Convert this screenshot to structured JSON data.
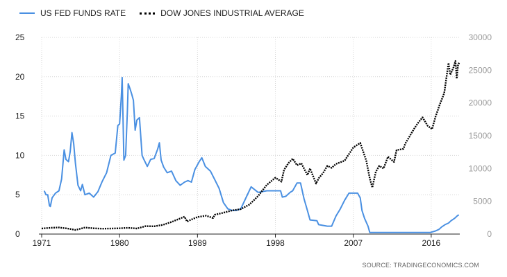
{
  "legend": {
    "fed": "US FED FUNDS RATE",
    "dow": "DOW JONES INDUSTRIAL AVERAGE"
  },
  "source": "SOURCE:  TRADINGECONOMICS.COM",
  "colors": {
    "fed": "#4a90e2",
    "dow": "#000000",
    "grid": "#d6d6d6",
    "axis_left": "#222222",
    "axis_right": "#9a9a9a"
  },
  "chart_data": {
    "type": "line",
    "xlim": [
      1971,
      2019.3
    ],
    "x_ticks": [
      1971,
      1980,
      1989,
      1998,
      2007,
      2016
    ],
    "y_left": {
      "lim": [
        0,
        25
      ],
      "ticks": [
        0,
        5,
        10,
        15,
        20,
        25
      ]
    },
    "y_right": {
      "lim": [
        0,
        30000
      ],
      "ticks": [
        0,
        5000,
        10000,
        15000,
        20000,
        25000,
        30000
      ]
    },
    "grid": true,
    "legend_position": "top-left",
    "series": [
      {
        "name": "US FED FUNDS RATE",
        "axis": "left",
        "style": "solid",
        "points": [
          [
            1971.3,
            5.5
          ],
          [
            1971.5,
            5.0
          ],
          [
            1971.7,
            5.0
          ],
          [
            1971.9,
            3.6
          ],
          [
            1972.0,
            3.5
          ],
          [
            1972.2,
            4.6
          ],
          [
            1972.6,
            5.2
          ],
          [
            1973.0,
            5.5
          ],
          [
            1973.3,
            7.0
          ],
          [
            1973.6,
            10.7
          ],
          [
            1973.8,
            9.5
          ],
          [
            1974.1,
            9.2
          ],
          [
            1974.3,
            10.5
          ],
          [
            1974.5,
            12.9
          ],
          [
            1974.7,
            11.5
          ],
          [
            1974.9,
            9.0
          ],
          [
            1975.2,
            6.2
          ],
          [
            1975.5,
            5.5
          ],
          [
            1975.7,
            6.3
          ],
          [
            1976.0,
            5.0
          ],
          [
            1976.5,
            5.2
          ],
          [
            1977.0,
            4.7
          ],
          [
            1977.5,
            5.4
          ],
          [
            1978.0,
            6.7
          ],
          [
            1978.5,
            7.8
          ],
          [
            1979.0,
            10.0
          ],
          [
            1979.5,
            10.3
          ],
          [
            1979.8,
            13.8
          ],
          [
            1980.0,
            14.0
          ],
          [
            1980.2,
            17.5
          ],
          [
            1980.3,
            19.9
          ],
          [
            1980.5,
            9.4
          ],
          [
            1980.7,
            10.0
          ],
          [
            1980.9,
            15.6
          ],
          [
            1981.0,
            19.1
          ],
          [
            1981.2,
            18.5
          ],
          [
            1981.4,
            17.8
          ],
          [
            1981.6,
            17.0
          ],
          [
            1981.8,
            13.2
          ],
          [
            1982.0,
            14.5
          ],
          [
            1982.3,
            14.8
          ],
          [
            1982.6,
            10.0
          ],
          [
            1982.8,
            9.5
          ],
          [
            1983.2,
            8.6
          ],
          [
            1983.6,
            9.5
          ],
          [
            1984.0,
            9.6
          ],
          [
            1984.4,
            10.8
          ],
          [
            1984.6,
            11.6
          ],
          [
            1984.8,
            9.4
          ],
          [
            1985.1,
            8.5
          ],
          [
            1985.5,
            7.8
          ],
          [
            1986.0,
            8.0
          ],
          [
            1986.5,
            6.8
          ],
          [
            1987.0,
            6.2
          ],
          [
            1987.5,
            6.6
          ],
          [
            1987.9,
            6.8
          ],
          [
            1988.3,
            6.6
          ],
          [
            1988.7,
            8.2
          ],
          [
            1989.2,
            9.2
          ],
          [
            1989.5,
            9.7
          ],
          [
            1989.9,
            8.6
          ],
          [
            1990.5,
            8.0
          ],
          [
            1991.0,
            6.9
          ],
          [
            1991.5,
            5.8
          ],
          [
            1992.0,
            4.0
          ],
          [
            1992.5,
            3.2
          ],
          [
            1993.0,
            3.0
          ],
          [
            1993.5,
            3.0
          ],
          [
            1994.0,
            3.2
          ],
          [
            1994.6,
            4.6
          ],
          [
            1995.2,
            6.0
          ],
          [
            1996.0,
            5.3
          ],
          [
            1997.0,
            5.5
          ],
          [
            1998.0,
            5.5
          ],
          [
            1998.6,
            5.5
          ],
          [
            1998.8,
            4.7
          ],
          [
            1999.2,
            4.8
          ],
          [
            1999.7,
            5.3
          ],
          [
            2000.0,
            5.5
          ],
          [
            2000.5,
            6.5
          ],
          [
            2000.9,
            6.5
          ],
          [
            2001.3,
            4.5
          ],
          [
            2001.7,
            3.0
          ],
          [
            2002.0,
            1.8
          ],
          [
            2002.8,
            1.7
          ],
          [
            2003.0,
            1.2
          ],
          [
            2004.0,
            1.0
          ],
          [
            2004.5,
            1.0
          ],
          [
            2005.0,
            2.3
          ],
          [
            2005.5,
            3.2
          ],
          [
            2006.0,
            4.3
          ],
          [
            2006.5,
            5.2
          ],
          [
            2007.5,
            5.2
          ],
          [
            2007.8,
            4.6
          ],
          [
            2008.0,
            3.0
          ],
          [
            2008.3,
            2.0
          ],
          [
            2008.7,
            1.0
          ],
          [
            2008.9,
            0.2
          ],
          [
            2015.9,
            0.2
          ],
          [
            2016.5,
            0.4
          ],
          [
            2016.9,
            0.6
          ],
          [
            2017.2,
            0.9
          ],
          [
            2017.6,
            1.2
          ],
          [
            2018.0,
            1.4
          ],
          [
            2018.3,
            1.7
          ],
          [
            2018.7,
            2.0
          ],
          [
            2018.9,
            2.2
          ],
          [
            2019.1,
            2.4
          ],
          [
            2019.2,
            2.4
          ]
        ]
      },
      {
        "name": "DOW JONES INDUSTRIAL AVERAGE",
        "axis": "right",
        "style": "dotted",
        "points": [
          [
            1971.0,
            850
          ],
          [
            1972.0,
            950
          ],
          [
            1973.0,
            1000
          ],
          [
            1974.0,
            850
          ],
          [
            1974.9,
            620
          ],
          [
            1975.5,
            820
          ],
          [
            1976.0,
            990
          ],
          [
            1977.0,
            880
          ],
          [
            1978.0,
            820
          ],
          [
            1979.0,
            840
          ],
          [
            1980.0,
            880
          ],
          [
            1981.0,
            950
          ],
          [
            1982.0,
            850
          ],
          [
            1983.0,
            1200
          ],
          [
            1984.0,
            1180
          ],
          [
            1985.0,
            1400
          ],
          [
            1986.0,
            1850
          ],
          [
            1987.5,
            2650
          ],
          [
            1987.8,
            1900
          ],
          [
            1988.0,
            2050
          ],
          [
            1989.0,
            2600
          ],
          [
            1990.0,
            2800
          ],
          [
            1990.8,
            2450
          ],
          [
            1991.0,
            2950
          ],
          [
            1992.0,
            3250
          ],
          [
            1993.0,
            3600
          ],
          [
            1994.0,
            3800
          ],
          [
            1995.0,
            4500
          ],
          [
            1996.0,
            5800
          ],
          [
            1997.0,
            7500
          ],
          [
            1998.0,
            8600
          ],
          [
            1998.7,
            8000
          ],
          [
            1999.0,
            9800
          ],
          [
            1999.5,
            10800
          ],
          [
            2000.0,
            11500
          ],
          [
            2000.5,
            10500
          ],
          [
            2001.0,
            10800
          ],
          [
            2001.7,
            9000
          ],
          [
            2002.0,
            10000
          ],
          [
            2002.7,
            7700
          ],
          [
            2003.0,
            8500
          ],
          [
            2003.5,
            9300
          ],
          [
            2004.0,
            10400
          ],
          [
            2004.5,
            10100
          ],
          [
            2005.0,
            10700
          ],
          [
            2006.0,
            11200
          ],
          [
            2007.0,
            13200
          ],
          [
            2007.8,
            13900
          ],
          [
            2008.5,
            11200
          ],
          [
            2008.9,
            8500
          ],
          [
            2009.2,
            7100
          ],
          [
            2009.6,
            9500
          ],
          [
            2010.0,
            10400
          ],
          [
            2010.5,
            10000
          ],
          [
            2011.0,
            11800
          ],
          [
            2011.7,
            11000
          ],
          [
            2012.0,
            12800
          ],
          [
            2012.8,
            13000
          ],
          [
            2013.0,
            13800
          ],
          [
            2014.0,
            16000
          ],
          [
            2014.5,
            17000
          ],
          [
            2015.0,
            17800
          ],
          [
            2015.6,
            16500
          ],
          [
            2016.1,
            16000
          ],
          [
            2016.5,
            17900
          ],
          [
            2017.0,
            19800
          ],
          [
            2017.5,
            21500
          ],
          [
            2018.0,
            26100
          ],
          [
            2018.2,
            24300
          ],
          [
            2018.6,
            25500
          ],
          [
            2018.8,
            26400
          ],
          [
            2018.95,
            23700
          ],
          [
            2019.1,
            25800
          ],
          [
            2019.25,
            26200
          ]
        ]
      }
    ]
  }
}
